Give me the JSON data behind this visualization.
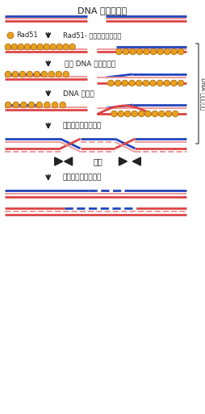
{
  "title": "DNA 二重鎖切断",
  "bg": "#ffffff",
  "blue": "#2244bb",
  "red": "#dd4444",
  "pink": "#ee9999",
  "orange": "#e8a020",
  "orange_edge": "#b07010",
  "dark": "#222222",
  "gray_brace": "#666666",
  "label1": "Rad51- 単鎖複合体の形成",
  "label2": "相同 DNA 配列の検索",
  "label3": "DNA 鎖交換",
  "label4": "組換え中間体の形成",
  "label5": "切断",
  "label6": "組換え中間体の解消",
  "rad51": "Rad51",
  "side_label": "DNA 鎖交換反応",
  "fig_w": 2.55,
  "fig_h": 5.13
}
